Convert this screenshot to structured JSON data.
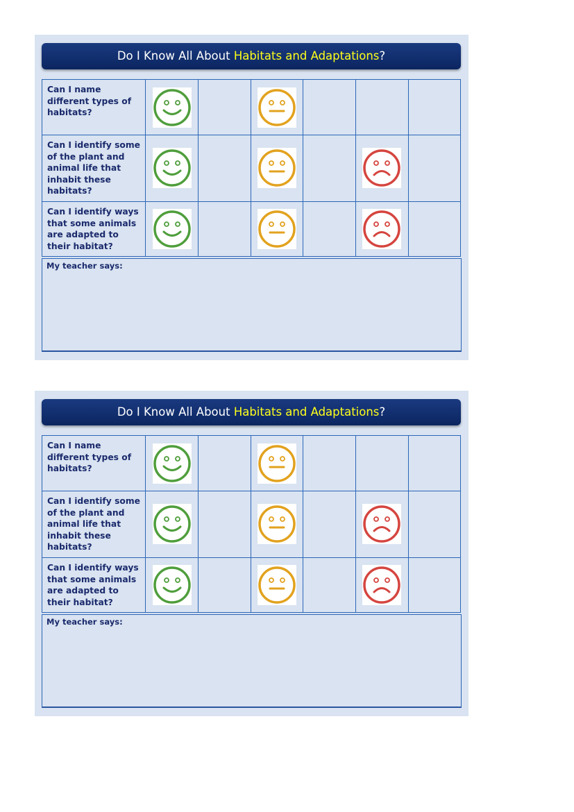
{
  "cards": [
    {
      "title_prefix": "Do I Know All About ",
      "title_highlight": "Habitats and Adaptations",
      "title_suffix": "?",
      "questions": [
        "Can I name different types of habitats?",
        "Can I identify some of the plant and animal life that inhabit these habitats?",
        "Can I identify ways that some animals are adapted to their habitat?"
      ],
      "teacher_label": "My teacher says:"
    },
    {
      "title_prefix": "Do I Know All About ",
      "title_highlight": "Habitats and Adaptations",
      "title_suffix": "?",
      "questions": [
        "Can I name different types of habitats?",
        "Can I identify some of the plant and animal life that inhabit these habitats?",
        "Can I identify ways that some animals are adapted to their habitat?"
      ],
      "teacher_label": "My teacher says:"
    }
  ]
}
